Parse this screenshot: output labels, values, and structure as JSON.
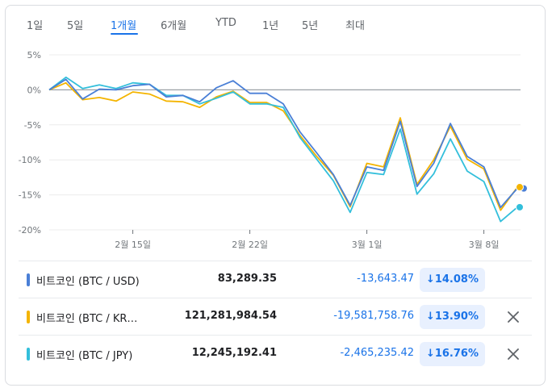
{
  "tabs": [
    "1일",
    "5일",
    "1개월",
    "6개월",
    "YTD",
    "1년",
    "5년",
    "최대"
  ],
  "active_tab": "1개월",
  "chart_data": {
    "type": "line",
    "y_ticks": [
      "5%",
      "0%",
      "-5%",
      "-10%",
      "-15%",
      "-20%"
    ],
    "x_ticks": [
      {
        "label": "2월 15일",
        "index": 5
      },
      {
        "label": "2월 22일",
        "index": 12
      },
      {
        "label": "3월 1일",
        "index": 19
      },
      {
        "label": "3월 8일",
        "index": 26
      }
    ],
    "ylim": [
      -20,
      5
    ],
    "grid": true,
    "series": [
      {
        "name": "비트코인 (BTC / USD)",
        "color": "#4a7fd6",
        "values": [
          0,
          1.5,
          -1.3,
          0.1,
          0.0,
          0.6,
          0.8,
          -1.0,
          -0.8,
          -1.7,
          0.3,
          1.3,
          -0.5,
          -0.5,
          -2.0,
          -6.0,
          -9.0,
          -12.1,
          -16.5,
          -11.0,
          -11.5,
          -4.5,
          -13.8,
          -10.5,
          -4.8,
          -9.5,
          -11.0,
          -16.8,
          -14.08
        ]
      },
      {
        "name": "비트코인 (BTC / KRW)",
        "color": "#f4b400",
        "values": [
          0,
          1.0,
          -1.4,
          -1.1,
          -1.6,
          -0.3,
          -0.6,
          -1.6,
          -1.7,
          -2.5,
          -1.0,
          -0.2,
          -1.8,
          -1.8,
          -3.0,
          -6.5,
          -9.5,
          -12.2,
          -16.7,
          -10.5,
          -11.0,
          -4.0,
          -13.5,
          -10.0,
          -5.2,
          -9.9,
          -11.3,
          -17.2,
          -13.9
        ]
      },
      {
        "name": "비트코인 (BTC / JPY)",
        "color": "#33bfdb",
        "values": [
          0,
          1.8,
          0.2,
          0.7,
          0.2,
          1.0,
          0.8,
          -0.8,
          -0.8,
          -2.0,
          -1.2,
          -0.3,
          -2.0,
          -2.0,
          -2.5,
          -6.8,
          -9.9,
          -13.0,
          -17.5,
          -11.8,
          -12.1,
          -5.6,
          -14.9,
          -12.0,
          -7.0,
          -11.6,
          -13.1,
          -18.8,
          -16.76
        ]
      }
    ]
  },
  "rows": [
    {
      "name": "비트코인 (BTC / USD)",
      "price": "83,289.35",
      "change": "-13,643.47",
      "pct": "↓14.08%",
      "color": "#4a7fd6",
      "removable": false
    },
    {
      "name": "비트코인 (BTC / KR…",
      "price": "121,281,984.54",
      "change": "-19,581,758.76",
      "pct": "↓13.90%",
      "color": "#f4b400",
      "removable": true
    },
    {
      "name": "비트코인 (BTC / JPY)",
      "price": "12,245,192.41",
      "change": "-2,465,235.42",
      "pct": "↓16.76%",
      "color": "#33bfdb",
      "removable": true
    }
  ]
}
